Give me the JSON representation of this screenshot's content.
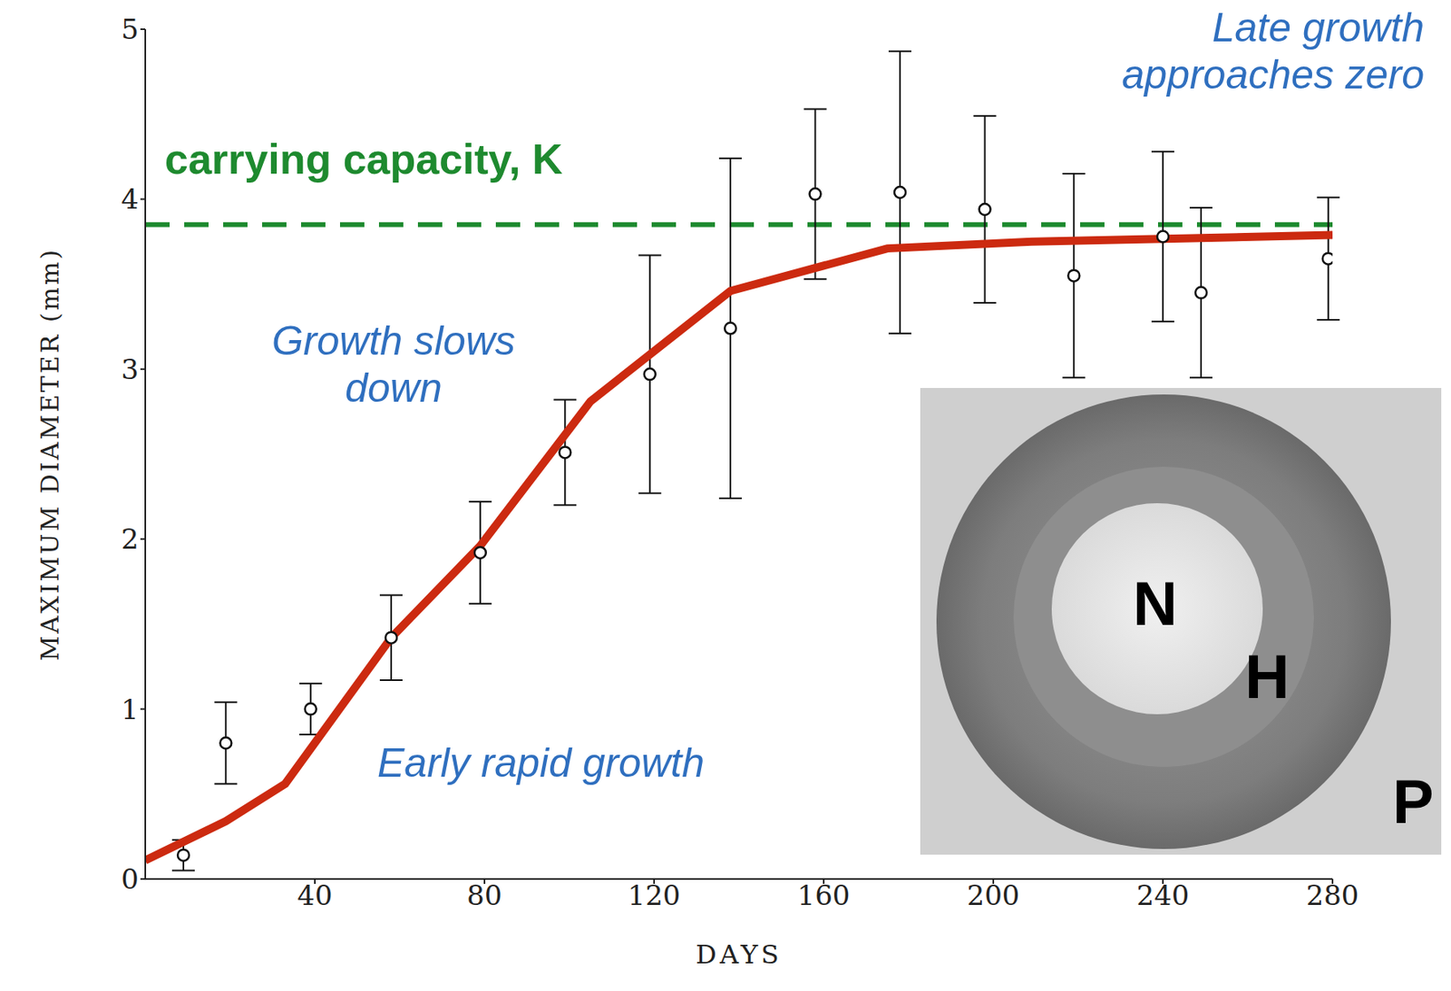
{
  "chart_data": {
    "type": "scatter",
    "x_label": "DAYS",
    "y_label": "MAXIMUM DIAMETER (mm)",
    "x": [
      9,
      19,
      39,
      58,
      79,
      99,
      119,
      138,
      158,
      178,
      198,
      219,
      240,
      249,
      279
    ],
    "values": [
      0.14,
      0.8,
      1.0,
      1.42,
      1.92,
      2.51,
      2.97,
      3.24,
      4.03,
      4.04,
      3.94,
      3.55,
      3.78,
      3.45,
      3.65
    ],
    "errors": [
      0.09,
      0.24,
      0.15,
      0.25,
      0.3,
      0.31,
      0.7,
      1.0,
      0.5,
      0.83,
      0.55,
      0.6,
      0.5,
      0.5,
      0.36
    ],
    "color": "#111111",
    "marker": "circle",
    "fit": {
      "type": "line",
      "x": [
        0,
        19,
        33,
        58,
        79,
        105,
        138,
        175,
        209,
        247,
        280
      ],
      "values": [
        0.11,
        0.34,
        0.56,
        1.42,
        1.96,
        2.81,
        3.46,
        3.71,
        3.75,
        3.77,
        3.79
      ],
      "color": "#cc2a10",
      "line_style": "solid"
    },
    "reference_line": {
      "value": 3.85,
      "label": "carrying capacity, K",
      "color": "#1e8a2f",
      "line_style": "dashed"
    },
    "annotations": {
      "color": "#2f6fbf",
      "texts": [
        [
          "Late growth",
          "approaches zero"
        ],
        [
          "Growth slows",
          "down"
        ],
        [
          "Early rapid growth"
        ]
      ]
    },
    "inset": {
      "labels": [
        "N",
        "H",
        "P"
      ]
    },
    "xlim": [
      0,
      280
    ],
    "xticks": [
      40,
      80,
      120,
      160,
      200,
      240,
      280
    ],
    "ylim": [
      0,
      5
    ],
    "yticks": [
      0,
      1,
      2,
      3,
      4,
      5
    ],
    "grid": false
  }
}
